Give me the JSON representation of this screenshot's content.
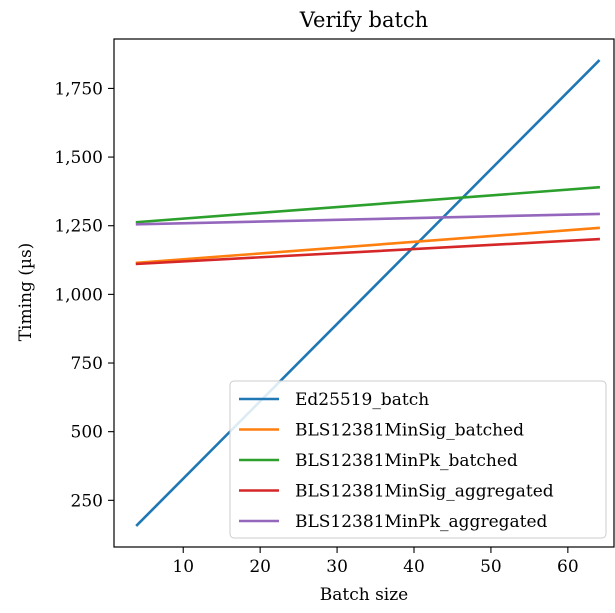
{
  "chart_data": {
    "type": "line",
    "title": "Verify batch",
    "xlabel": "Batch size",
    "ylabel": "Timing (µs)",
    "xlim": [
      1,
      66
    ],
    "ylim": [
      80,
      1930
    ],
    "xticks": [
      10,
      20,
      30,
      40,
      50,
      60
    ],
    "yticks": [
      250,
      500,
      750,
      1000,
      1250,
      1500,
      1750
    ],
    "xtick_labels": [
      "10",
      "20",
      "30",
      "40",
      "50",
      "60"
    ],
    "ytick_labels": [
      "250",
      "500",
      "750",
      "1,000",
      "1,250",
      "1,500",
      "1,750"
    ],
    "grid": false,
    "legend_position": "lower-right",
    "series": [
      {
        "name": "Ed25519_batch",
        "color": "#1f77b4",
        "x": [
          4,
          64
        ],
        "y": [
          160,
          1850
        ]
      },
      {
        "name": "BLS12381MinSig_batched",
        "color": "#ff7f0e",
        "x": [
          4,
          64
        ],
        "y": [
          1115,
          1242
        ]
      },
      {
        "name": "BLS12381MinPk_batched",
        "color": "#2ca02c",
        "x": [
          4,
          64
        ],
        "y": [
          1263,
          1390
        ]
      },
      {
        "name": "BLS12381MinSig_aggregated",
        "color": "#d62728",
        "x": [
          4,
          64
        ],
        "y": [
          1111,
          1201
        ]
      },
      {
        "name": "BLS12381MinPk_aggregated",
        "color": "#9467bd",
        "x": [
          4,
          64
        ],
        "y": [
          1255,
          1293
        ]
      }
    ]
  }
}
